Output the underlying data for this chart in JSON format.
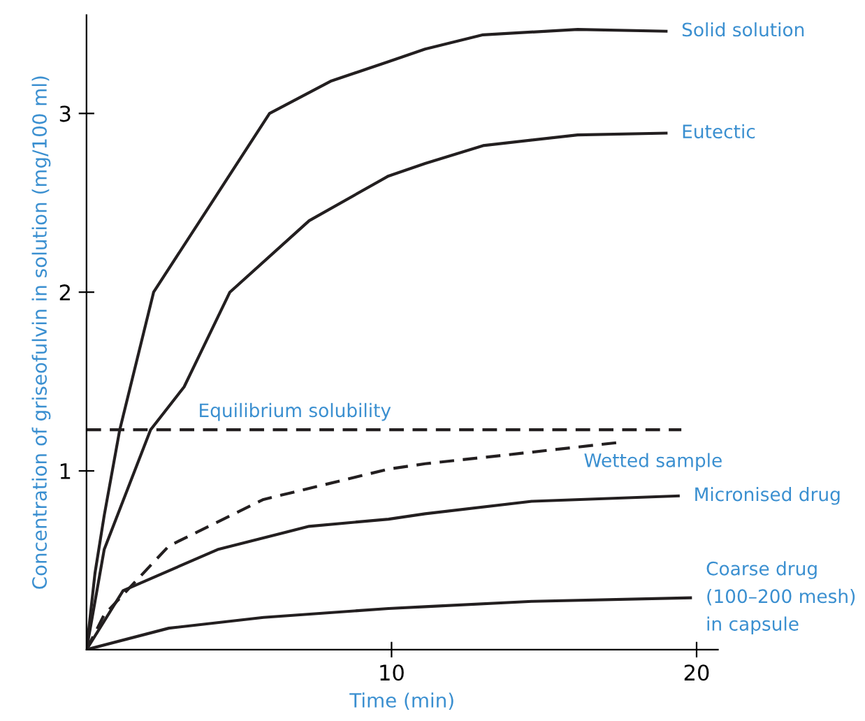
{
  "chart_data": {
    "type": "line",
    "xlabel": "Time (min)",
    "ylabel": "Concentration of griseofulvin in solution (mg/100 ml)",
    "xlim": [
      0,
      20.7
    ],
    "ylim": [
      0,
      3.55
    ],
    "xticks": [
      10,
      20
    ],
    "yticks": [
      1,
      2,
      3
    ],
    "grid": false,
    "legend": false,
    "marker": "none",
    "series": [
      {
        "name": "Solid solution",
        "color": "#231f20",
        "line_style": "solid",
        "x": [
          0,
          0.28,
          0.58,
          1.09,
          2.2,
          4.1,
          6.0,
          8.0,
          9.9,
          11.1,
          13.0,
          16.1,
          19.0
        ],
        "values": [
          0,
          0.43,
          0.75,
          1.23,
          2.0,
          2.5,
          3.0,
          3.18,
          3.29,
          3.36,
          3.44,
          3.47,
          3.46
        ]
      },
      {
        "name": "Eutectic",
        "color": "#231f20",
        "line_style": "solid",
        "x": [
          0,
          0.58,
          2.1,
          3.2,
          4.7,
          7.3,
          9.9,
          11.1,
          13.0,
          16.1,
          19.0
        ],
        "values": [
          0,
          0.56,
          1.23,
          1.47,
          2.0,
          2.4,
          2.65,
          2.72,
          2.82,
          2.88,
          2.89
        ]
      },
      {
        "name": "Equilibrium solubility",
        "color": "#231f20",
        "line_style": "dashed",
        "x": [
          0,
          19.5
        ],
        "values": [
          1.23,
          1.23
        ]
      },
      {
        "name": "Wetted sample",
        "color": "#231f20",
        "line_style": "dashed",
        "x": [
          0,
          0.58,
          2.7,
          5.8,
          9.9,
          11.1,
          13.8,
          17.5
        ],
        "values": [
          0,
          0.195,
          0.58,
          0.84,
          1.01,
          1.04,
          1.09,
          1.16
        ]
      },
      {
        "name": "Micronised drug",
        "color": "#231f20",
        "line_style": "solid",
        "x": [
          0,
          1.2,
          4.3,
          7.3,
          9.9,
          11.1,
          14.6,
          19.4
        ],
        "values": [
          0,
          0.33,
          0.56,
          0.69,
          0.73,
          0.76,
          0.83,
          0.86
        ]
      },
      {
        "name": "Coarse drug\n(100–200 mesh)\nin capsule",
        "color": "#231f20",
        "line_style": "solid",
        "x": [
          0,
          2.7,
          5.8,
          9.9,
          11.1,
          14.6,
          19.8
        ],
        "values": [
          0,
          0.12,
          0.18,
          0.23,
          0.24,
          0.27,
          0.29
        ]
      }
    ]
  }
}
